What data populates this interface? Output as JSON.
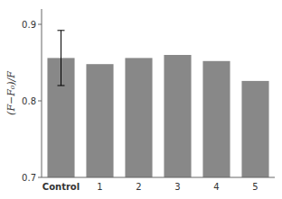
{
  "chart_data": {
    "type": "bar",
    "categories": [
      "Control",
      "1",
      "2",
      "3",
      "4",
      "5"
    ],
    "values": [
      0.856,
      0.848,
      0.856,
      0.86,
      0.852,
      0.826
    ],
    "error_bars": [
      0.036,
      0,
      0,
      0,
      0,
      0
    ],
    "color": "#888888",
    "ylabel": "(F−F₀)/F",
    "ylim": [
      0.7,
      0.92
    ],
    "yticks": [
      0.7,
      0.8,
      0.9
    ],
    "grid": false
  }
}
